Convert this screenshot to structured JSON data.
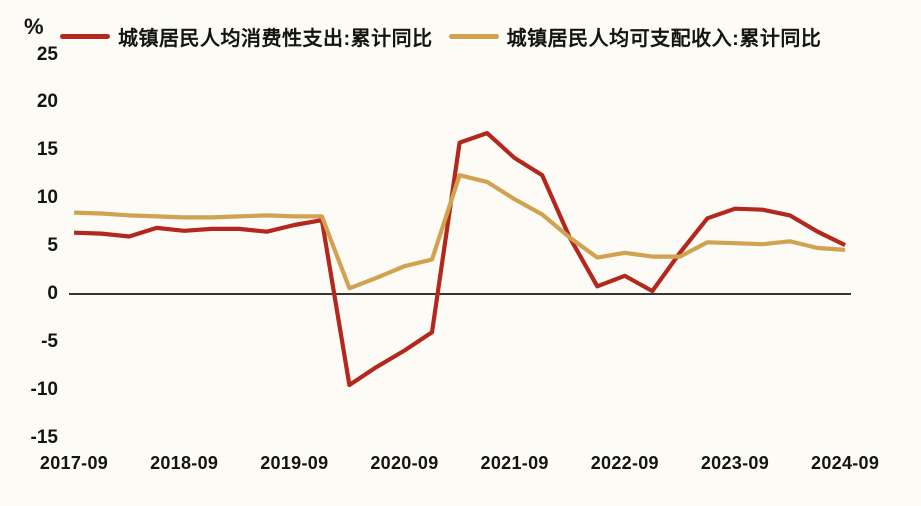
{
  "colors": {
    "background": "#fcfbf6",
    "text": "#141414",
    "zero_line": "#1a1a1a"
  },
  "chart_data": {
    "type": "line",
    "title": "",
    "unit_label": "%",
    "legend_position": "top",
    "grid": false,
    "zero_line": true,
    "ylim": [
      -15,
      25
    ],
    "y_ticks": [
      25,
      20,
      15,
      10,
      5,
      0,
      -5,
      -10,
      -15
    ],
    "x_axis_ticks": [
      "2017-09",
      "2018-09",
      "2019-09",
      "2020-09",
      "2021-09",
      "2022-09",
      "2023-09",
      "2024-09"
    ],
    "x": [
      "2017-09",
      "2017-12",
      "2018-03",
      "2018-06",
      "2018-09",
      "2018-12",
      "2019-03",
      "2019-06",
      "2019-09",
      "2019-12",
      "2020-03",
      "2020-06",
      "2020-09",
      "2020-12",
      "2021-03",
      "2021-06",
      "2021-09",
      "2021-12",
      "2022-03",
      "2022-06",
      "2022-09",
      "2022-12",
      "2023-03",
      "2023-06",
      "2023-09",
      "2023-12",
      "2024-03",
      "2024-06",
      "2024-09"
    ],
    "series": [
      {
        "name": "城镇居民人均消费性支出:累计同比",
        "color": "#b3271c",
        "values": [
          6.4,
          6.3,
          6.0,
          6.9,
          6.6,
          6.8,
          6.8,
          6.5,
          7.2,
          7.7,
          -9.5,
          -7.6,
          -5.9,
          -4.0,
          15.8,
          16.8,
          14.2,
          12.4,
          5.9,
          0.8,
          1.9,
          0.3,
          4.3,
          7.9,
          8.9,
          8.8,
          8.2,
          6.5,
          5.1
        ]
      },
      {
        "name": "城镇居民人均可支配收入:累计同比",
        "color": "#d1a24f",
        "values": [
          8.5,
          8.4,
          8.2,
          8.1,
          8.0,
          8.0,
          8.1,
          8.2,
          8.1,
          8.1,
          0.6,
          1.7,
          2.9,
          3.6,
          12.4,
          11.7,
          9.9,
          8.3,
          5.9,
          3.8,
          4.3,
          3.9,
          3.9,
          5.4,
          5.3,
          5.2,
          5.5,
          4.8,
          4.6
        ]
      }
    ]
  }
}
